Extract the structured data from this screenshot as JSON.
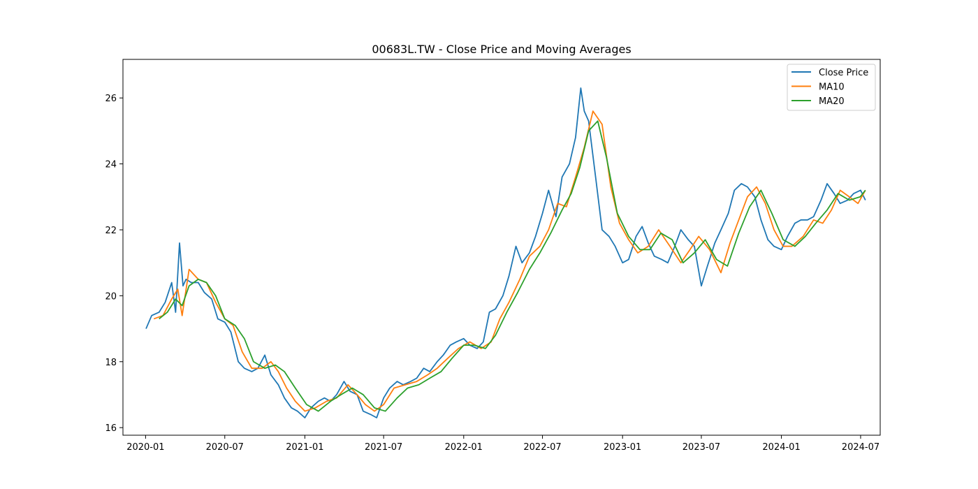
{
  "chart_data": {
    "type": "line",
    "title": "00683L.TW - Close Price and Moving Averages",
    "xlabel": "",
    "ylabel": "",
    "xlim": [
      "2019-11-10",
      "2024-08-15"
    ],
    "ylim": [
      15.77,
      27.17
    ],
    "x_ticks": [
      "2020-01",
      "2020-07",
      "2021-01",
      "2021-07",
      "2022-01",
      "2022-07",
      "2023-01",
      "2023-07",
      "2024-01",
      "2024-07"
    ],
    "y_ticks": [
      16,
      18,
      20,
      22,
      24,
      26
    ],
    "grid": false,
    "legend_position": "top-right",
    "series": [
      {
        "name": "Close Price",
        "color": "#1f77b4",
        "x": [
          "2020-01-02",
          "2020-01-15",
          "2020-02-01",
          "2020-02-15",
          "2020-03-01",
          "2020-03-10",
          "2020-03-19",
          "2020-03-27",
          "2020-04-03",
          "2020-04-15",
          "2020-05-01",
          "2020-05-15",
          "2020-06-01",
          "2020-06-15",
          "2020-07-01",
          "2020-07-15",
          "2020-08-01",
          "2020-08-15",
          "2020-09-01",
          "2020-09-15",
          "2020-10-01",
          "2020-10-15",
          "2020-11-01",
          "2020-11-15",
          "2020-12-01",
          "2020-12-15",
          "2021-01-01",
          "2021-01-15",
          "2021-02-01",
          "2021-02-15",
          "2021-03-01",
          "2021-03-15",
          "2021-04-01",
          "2021-04-15",
          "2021-05-01",
          "2021-05-15",
          "2021-06-01",
          "2021-06-15",
          "2021-07-01",
          "2021-07-15",
          "2021-08-01",
          "2021-08-15",
          "2021-09-01",
          "2021-09-15",
          "2021-10-01",
          "2021-10-15",
          "2021-11-01",
          "2021-11-15",
          "2021-12-01",
          "2021-12-15",
          "2022-01-01",
          "2022-01-15",
          "2022-02-01",
          "2022-02-15",
          "2022-03-01",
          "2022-03-15",
          "2022-04-01",
          "2022-04-15",
          "2022-05-01",
          "2022-05-15",
          "2022-06-01",
          "2022-06-15",
          "2022-07-01",
          "2022-07-15",
          "2022-08-01",
          "2022-08-15",
          "2022-09-01",
          "2022-09-15",
          "2022-09-27",
          "2022-10-05",
          "2022-10-15",
          "2022-11-01",
          "2022-11-15",
          "2022-12-01",
          "2022-12-15",
          "2023-01-01",
          "2023-01-15",
          "2023-02-01",
          "2023-02-15",
          "2023-03-01",
          "2023-03-15",
          "2023-04-01",
          "2023-04-15",
          "2023-05-01",
          "2023-05-15",
          "2023-06-01",
          "2023-06-15",
          "2023-07-01",
          "2023-07-15",
          "2023-08-01",
          "2023-08-15",
          "2023-09-01",
          "2023-09-15",
          "2023-10-01",
          "2023-10-15",
          "2023-11-01",
          "2023-11-15",
          "2023-12-01",
          "2023-12-15",
          "2024-01-01",
          "2024-01-15",
          "2024-02-01",
          "2024-02-15",
          "2024-03-01",
          "2024-03-15",
          "2024-04-01",
          "2024-04-15",
          "2024-05-01",
          "2024-05-15",
          "2024-06-01",
          "2024-06-15",
          "2024-07-01",
          "2024-07-12"
        ],
        "values": [
          19.0,
          19.4,
          19.5,
          19.8,
          20.4,
          19.5,
          21.6,
          20.3,
          20.5,
          20.4,
          20.4,
          20.1,
          19.9,
          19.3,
          19.2,
          18.9,
          18.0,
          17.8,
          17.7,
          17.8,
          18.2,
          17.6,
          17.3,
          16.9,
          16.6,
          16.5,
          16.3,
          16.6,
          16.8,
          16.9,
          16.8,
          17.0,
          17.4,
          17.1,
          17.0,
          16.5,
          16.4,
          16.3,
          16.9,
          17.2,
          17.4,
          17.3,
          17.4,
          17.5,
          17.8,
          17.7,
          18.0,
          18.2,
          18.5,
          18.6,
          18.7,
          18.5,
          18.4,
          18.6,
          19.5,
          19.6,
          20.0,
          20.6,
          21.5,
          21.0,
          21.3,
          21.8,
          22.5,
          23.2,
          22.4,
          23.6,
          24.0,
          24.8,
          26.3,
          25.6,
          25.3,
          23.5,
          22.0,
          21.8,
          21.5,
          21.0,
          21.1,
          21.8,
          22.1,
          21.6,
          21.2,
          21.1,
          21.0,
          21.5,
          22.0,
          21.7,
          21.5,
          20.3,
          20.9,
          21.6,
          22.0,
          22.5,
          23.2,
          23.4,
          23.3,
          23.0,
          22.3,
          21.7,
          21.5,
          21.4,
          21.8,
          22.2,
          22.3,
          22.3,
          22.4,
          22.9,
          23.4,
          23.1,
          22.8,
          22.9,
          23.1,
          23.2,
          22.9
        ]
      },
      {
        "name": "MA10",
        "color": "#ff7f0e",
        "x": [
          "2020-01-20",
          "2020-02-10",
          "2020-03-01",
          "2020-03-15",
          "2020-03-25",
          "2020-04-10",
          "2020-05-01",
          "2020-05-20",
          "2020-06-10",
          "2020-07-01",
          "2020-07-20",
          "2020-08-10",
          "2020-09-01",
          "2020-09-25",
          "2020-10-15",
          "2020-11-01",
          "2020-11-20",
          "2020-12-10",
          "2021-01-01",
          "2021-01-25",
          "2021-02-20",
          "2021-03-15",
          "2021-04-10",
          "2021-05-01",
          "2021-05-20",
          "2021-06-10",
          "2021-07-01",
          "2021-07-25",
          "2021-08-20",
          "2021-09-15",
          "2021-10-10",
          "2021-11-01",
          "2021-11-25",
          "2021-12-20",
          "2022-01-15",
          "2022-02-10",
          "2022-03-05",
          "2022-03-25",
          "2022-04-15",
          "2022-05-10",
          "2022-06-01",
          "2022-06-25",
          "2022-07-15",
          "2022-08-05",
          "2022-08-25",
          "2022-09-15",
          "2022-10-05",
          "2022-10-25",
          "2022-11-15",
          "2022-12-05",
          "2022-12-25",
          "2023-01-15",
          "2023-02-05",
          "2023-03-01",
          "2023-03-25",
          "2023-04-20",
          "2023-05-15",
          "2023-06-05",
          "2023-06-25",
          "2023-07-20",
          "2023-08-15",
          "2023-09-05",
          "2023-09-25",
          "2023-10-15",
          "2023-11-05",
          "2023-11-25",
          "2023-12-15",
          "2024-01-05",
          "2024-01-25",
          "2024-02-20",
          "2024-03-15",
          "2024-04-05",
          "2024-04-25",
          "2024-05-15",
          "2024-06-05",
          "2024-06-25",
          "2024-07-12"
        ],
        "values": [
          19.3,
          19.4,
          19.9,
          20.2,
          19.4,
          20.8,
          20.5,
          20.4,
          19.8,
          19.3,
          19.1,
          18.3,
          17.8,
          17.8,
          18.0,
          17.7,
          17.2,
          16.8,
          16.5,
          16.6,
          16.8,
          16.9,
          17.3,
          17.0,
          16.7,
          16.5,
          16.7,
          17.2,
          17.3,
          17.4,
          17.6,
          17.8,
          18.1,
          18.4,
          18.6,
          18.4,
          18.6,
          19.3,
          19.8,
          20.5,
          21.2,
          21.5,
          22.0,
          22.8,
          22.7,
          23.6,
          24.5,
          25.6,
          25.2,
          23.3,
          22.2,
          21.7,
          21.3,
          21.5,
          22.0,
          21.5,
          21.0,
          21.4,
          21.8,
          21.4,
          20.7,
          21.6,
          22.3,
          23.0,
          23.3,
          22.8,
          22.0,
          21.5,
          21.5,
          21.8,
          22.3,
          22.2,
          22.6,
          23.2,
          23.0,
          22.8,
          23.2
        ]
      },
      {
        "name": "MA20",
        "color": "#2ca02c",
        "x": [
          "2020-02-01",
          "2020-02-20",
          "2020-03-10",
          "2020-03-25",
          "2020-04-10",
          "2020-05-01",
          "2020-05-20",
          "2020-06-10",
          "2020-07-01",
          "2020-07-25",
          "2020-08-15",
          "2020-09-05",
          "2020-10-01",
          "2020-10-25",
          "2020-11-15",
          "2020-12-10",
          "2021-01-05",
          "2021-02-01",
          "2021-03-01",
          "2021-03-25",
          "2021-04-20",
          "2021-05-15",
          "2021-06-10",
          "2021-07-05",
          "2021-08-01",
          "2021-08-25",
          "2021-09-20",
          "2021-10-15",
          "2021-11-10",
          "2021-12-05",
          "2022-01-01",
          "2022-01-25",
          "2022-02-20",
          "2022-03-15",
          "2022-04-10",
          "2022-05-05",
          "2022-06-01",
          "2022-06-25",
          "2022-07-20",
          "2022-08-15",
          "2022-09-05",
          "2022-09-25",
          "2022-10-15",
          "2022-11-05",
          "2022-11-25",
          "2022-12-20",
          "2023-01-15",
          "2023-02-10",
          "2023-03-05",
          "2023-03-30",
          "2023-04-25",
          "2023-05-20",
          "2023-06-15",
          "2023-07-10",
          "2023-08-05",
          "2023-08-30",
          "2023-09-25",
          "2023-10-20",
          "2023-11-15",
          "2023-12-10",
          "2024-01-05",
          "2024-02-01",
          "2024-02-25",
          "2024-03-20",
          "2024-04-15",
          "2024-05-10",
          "2024-06-05",
          "2024-06-30",
          "2024-07-12"
        ],
        "values": [
          19.3,
          19.5,
          19.9,
          19.7,
          20.3,
          20.5,
          20.4,
          20.0,
          19.3,
          19.1,
          18.7,
          18.0,
          17.8,
          17.9,
          17.7,
          17.2,
          16.7,
          16.5,
          16.8,
          17.0,
          17.2,
          17.0,
          16.6,
          16.5,
          16.9,
          17.2,
          17.3,
          17.5,
          17.7,
          18.1,
          18.5,
          18.5,
          18.4,
          18.8,
          19.5,
          20.1,
          20.8,
          21.3,
          21.9,
          22.6,
          23.1,
          23.9,
          25.0,
          25.3,
          24.2,
          22.5,
          21.8,
          21.4,
          21.4,
          21.9,
          21.7,
          21.0,
          21.3,
          21.7,
          21.1,
          20.9,
          21.9,
          22.7,
          23.2,
          22.5,
          21.7,
          21.5,
          21.8,
          22.2,
          22.6,
          23.1,
          22.9,
          23.0,
          23.2
        ]
      }
    ]
  }
}
